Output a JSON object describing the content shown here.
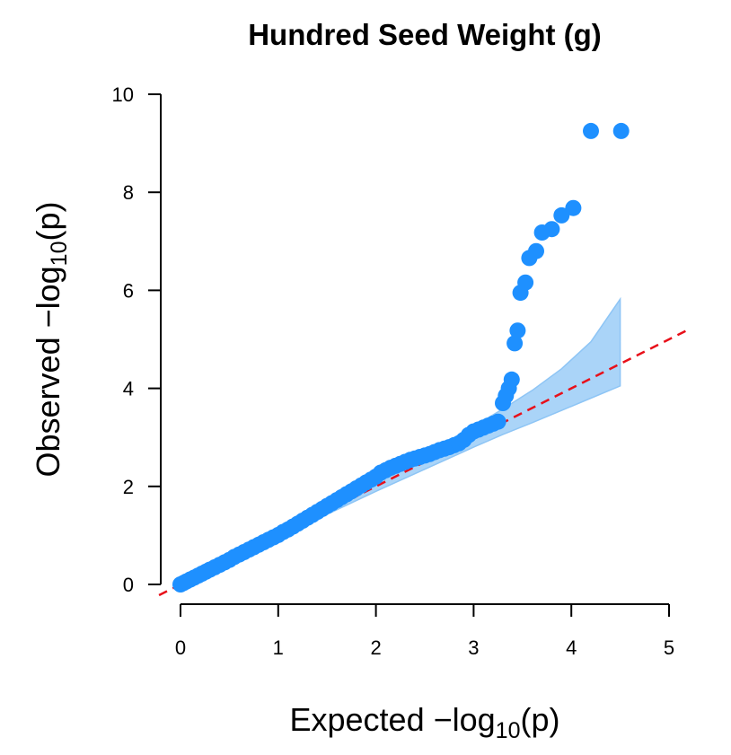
{
  "chart_data": {
    "type": "scatter",
    "title": "Hundred Seed Weight (g)",
    "xlabel": "Expected  −log10(p)",
    "ylabel": "Observed  −log10(p)",
    "xlim": [
      0,
      5
    ],
    "ylim": [
      0,
      10
    ],
    "x_ticks": [
      "0",
      "1",
      "2",
      "3",
      "4",
      "5"
    ],
    "y_ticks": [
      "0",
      "2",
      "4",
      "6",
      "8",
      "10"
    ],
    "grid": false,
    "legend": "none",
    "colors": {
      "points": "#1E90FF",
      "band": "#8EC5F5",
      "reference_line": "#E8101A"
    },
    "reference_line": {
      "x": [
        -0.22,
        5.22
      ],
      "y": [
        -0.22,
        5.22
      ]
    },
    "confidence_band": {
      "x": [
        0.0,
        0.5,
        1.0,
        1.5,
        2.0,
        2.5,
        3.0,
        3.3,
        3.6,
        3.9,
        4.2,
        4.5
      ],
      "upper": [
        0.01,
        0.52,
        1.04,
        1.57,
        2.1,
        2.66,
        3.22,
        3.58,
        3.96,
        4.4,
        4.95,
        5.82
      ],
      "lower": [
        0.0,
        0.48,
        0.96,
        1.43,
        1.9,
        2.35,
        2.8,
        3.06,
        3.3,
        3.55,
        3.8,
        4.05
      ]
    },
    "series": [
      {
        "x": [
          0.0,
          0.03,
          0.06,
          0.1,
          0.14,
          0.18,
          0.22,
          0.26,
          0.3,
          0.35,
          0.4,
          0.45,
          0.5,
          0.55,
          0.6,
          0.65,
          0.7,
          0.75,
          0.8,
          0.85,
          0.9,
          0.95,
          1.0,
          1.05,
          1.1,
          1.15,
          1.2,
          1.25,
          1.3,
          1.35,
          1.4,
          1.45,
          1.5,
          1.55,
          1.6,
          1.65,
          1.7,
          1.75,
          1.8,
          1.85,
          1.9,
          1.95,
          2.0,
          2.05,
          2.1,
          2.15,
          2.2,
          2.25,
          2.3,
          2.35,
          2.4,
          2.45,
          2.5,
          2.55,
          2.6,
          2.65,
          2.7,
          2.75,
          2.8,
          2.85,
          2.9,
          2.95,
          3.0,
          3.05,
          3.1,
          3.15,
          3.2,
          3.25,
          3.3,
          3.33,
          3.36,
          3.39,
          3.42,
          3.45,
          3.48,
          3.53,
          3.57,
          3.64,
          3.7,
          3.8,
          3.9,
          4.02,
          4.2,
          4.51
        ],
        "y": [
          0.0,
          0.03,
          0.06,
          0.1,
          0.14,
          0.18,
          0.22,
          0.26,
          0.3,
          0.35,
          0.4,
          0.45,
          0.5,
          0.56,
          0.61,
          0.66,
          0.71,
          0.76,
          0.81,
          0.86,
          0.91,
          0.96,
          1.01,
          1.07,
          1.12,
          1.18,
          1.24,
          1.3,
          1.36,
          1.42,
          1.48,
          1.54,
          1.6,
          1.66,
          1.72,
          1.78,
          1.84,
          1.9,
          1.96,
          2.02,
          2.08,
          2.14,
          2.2,
          2.28,
          2.33,
          2.38,
          2.42,
          2.46,
          2.5,
          2.54,
          2.57,
          2.6,
          2.63,
          2.66,
          2.7,
          2.74,
          2.77,
          2.8,
          2.84,
          2.88,
          2.95,
          3.05,
          3.12,
          3.16,
          3.2,
          3.24,
          3.28,
          3.32,
          3.7,
          3.85,
          4.0,
          4.18,
          4.92,
          5.18,
          5.95,
          6.16,
          6.66,
          6.8,
          7.18,
          7.25,
          7.53,
          7.68,
          9.25,
          9.25
        ]
      }
    ]
  }
}
